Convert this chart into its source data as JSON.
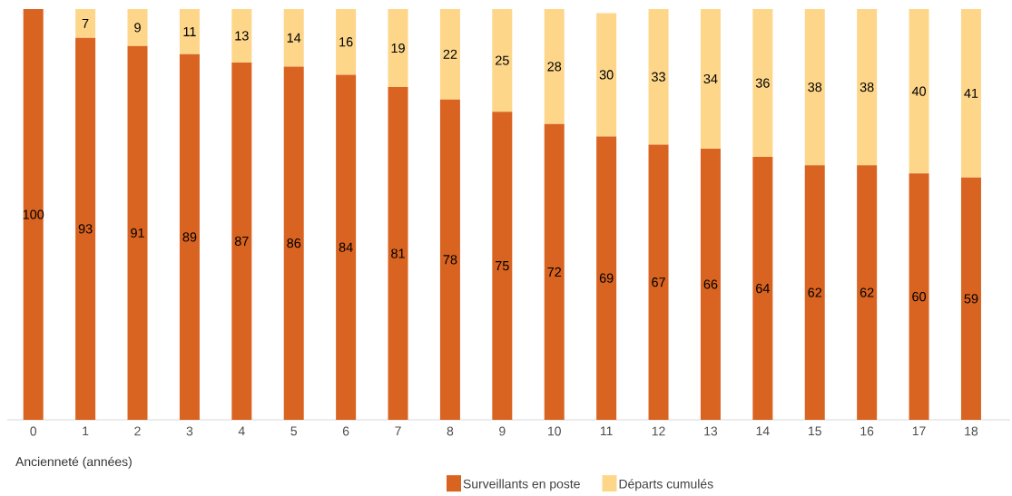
{
  "chart_data": {
    "type": "bar",
    "stacked": true,
    "xlabel": "Ancienneté (années)",
    "categories": [
      "0",
      "1",
      "2",
      "3",
      "4",
      "5",
      "6",
      "7",
      "8",
      "9",
      "10",
      "11",
      "12",
      "13",
      "14",
      "15",
      "16",
      "17",
      "18"
    ],
    "ylim": [
      0,
      100
    ],
    "legend": "bottom",
    "series": [
      {
        "name": "Surveillants en poste",
        "color": "#d96320",
        "values": [
          100,
          93,
          91,
          89,
          87,
          86,
          84,
          81,
          78,
          75,
          72,
          69,
          67,
          66,
          64,
          62,
          62,
          60,
          59
        ],
        "value_labels": [
          "100",
          "93",
          "91",
          "89",
          "87",
          "86",
          "84",
          "81",
          "78",
          "75",
          "72",
          "69",
          "67",
          "66",
          "64",
          "62",
          "62",
          "60",
          "59"
        ]
      },
      {
        "name": "Départs cumulés",
        "color": "#fdd68a",
        "values": [
          0,
          7,
          9,
          11,
          13,
          14,
          16,
          19,
          22,
          25,
          28,
          30,
          33,
          34,
          36,
          38,
          38,
          40,
          41
        ],
        "value_labels": [
          null,
          "7",
          "9",
          "11",
          "13",
          "14",
          "16",
          "19",
          "22",
          "25",
          "28",
          "30",
          "33",
          "34",
          "36",
          "38",
          "38",
          "40",
          "41"
        ]
      }
    ]
  }
}
